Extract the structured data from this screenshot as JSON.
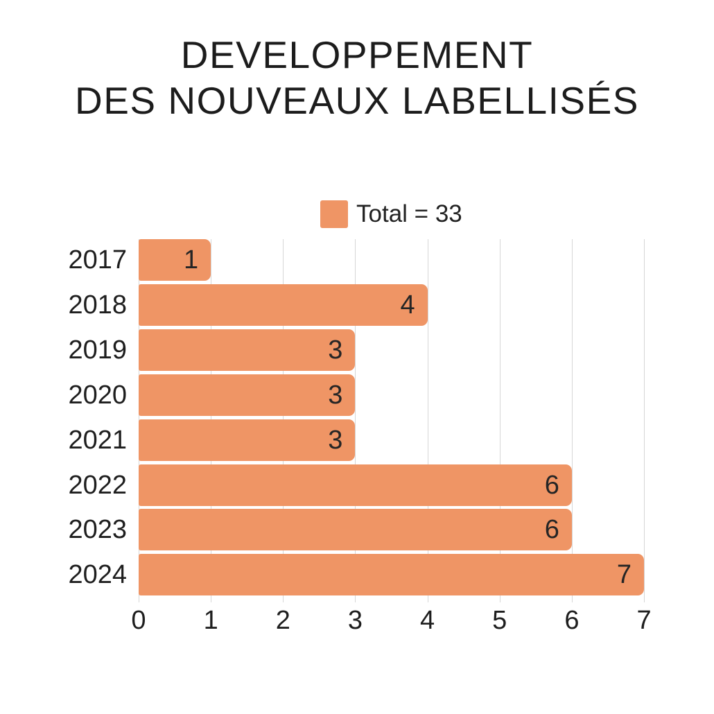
{
  "title": {
    "line1": "DEVELOPPEMENT",
    "line2": "DES NOUVEAUX LABELLISÉS"
  },
  "legend": {
    "label": "Total = 33",
    "swatch_color": "#EF9565"
  },
  "colors": {
    "bar": "#EF9565",
    "gridline": "#d6d6d6",
    "text": "#1e1e1e"
  },
  "chart_data": {
    "type": "bar",
    "orientation": "horizontal",
    "title": "DEVELOPPEMENT DES NOUVEAUX LABELLISÉS",
    "categories": [
      "2017",
      "2018",
      "2019",
      "2020",
      "2021",
      "2022",
      "2023",
      "2024"
    ],
    "values": [
      1,
      4,
      3,
      3,
      3,
      6,
      6,
      7
    ],
    "data_labels_shown": true,
    "total": 33,
    "legend_entries": [
      "Total = 33"
    ],
    "legend_position": "top",
    "xlabel": "",
    "ylabel": "",
    "xlim": [
      0,
      7
    ],
    "x_ticks": [
      0,
      1,
      2,
      3,
      4,
      5,
      6,
      7
    ],
    "grid": "vertical"
  }
}
